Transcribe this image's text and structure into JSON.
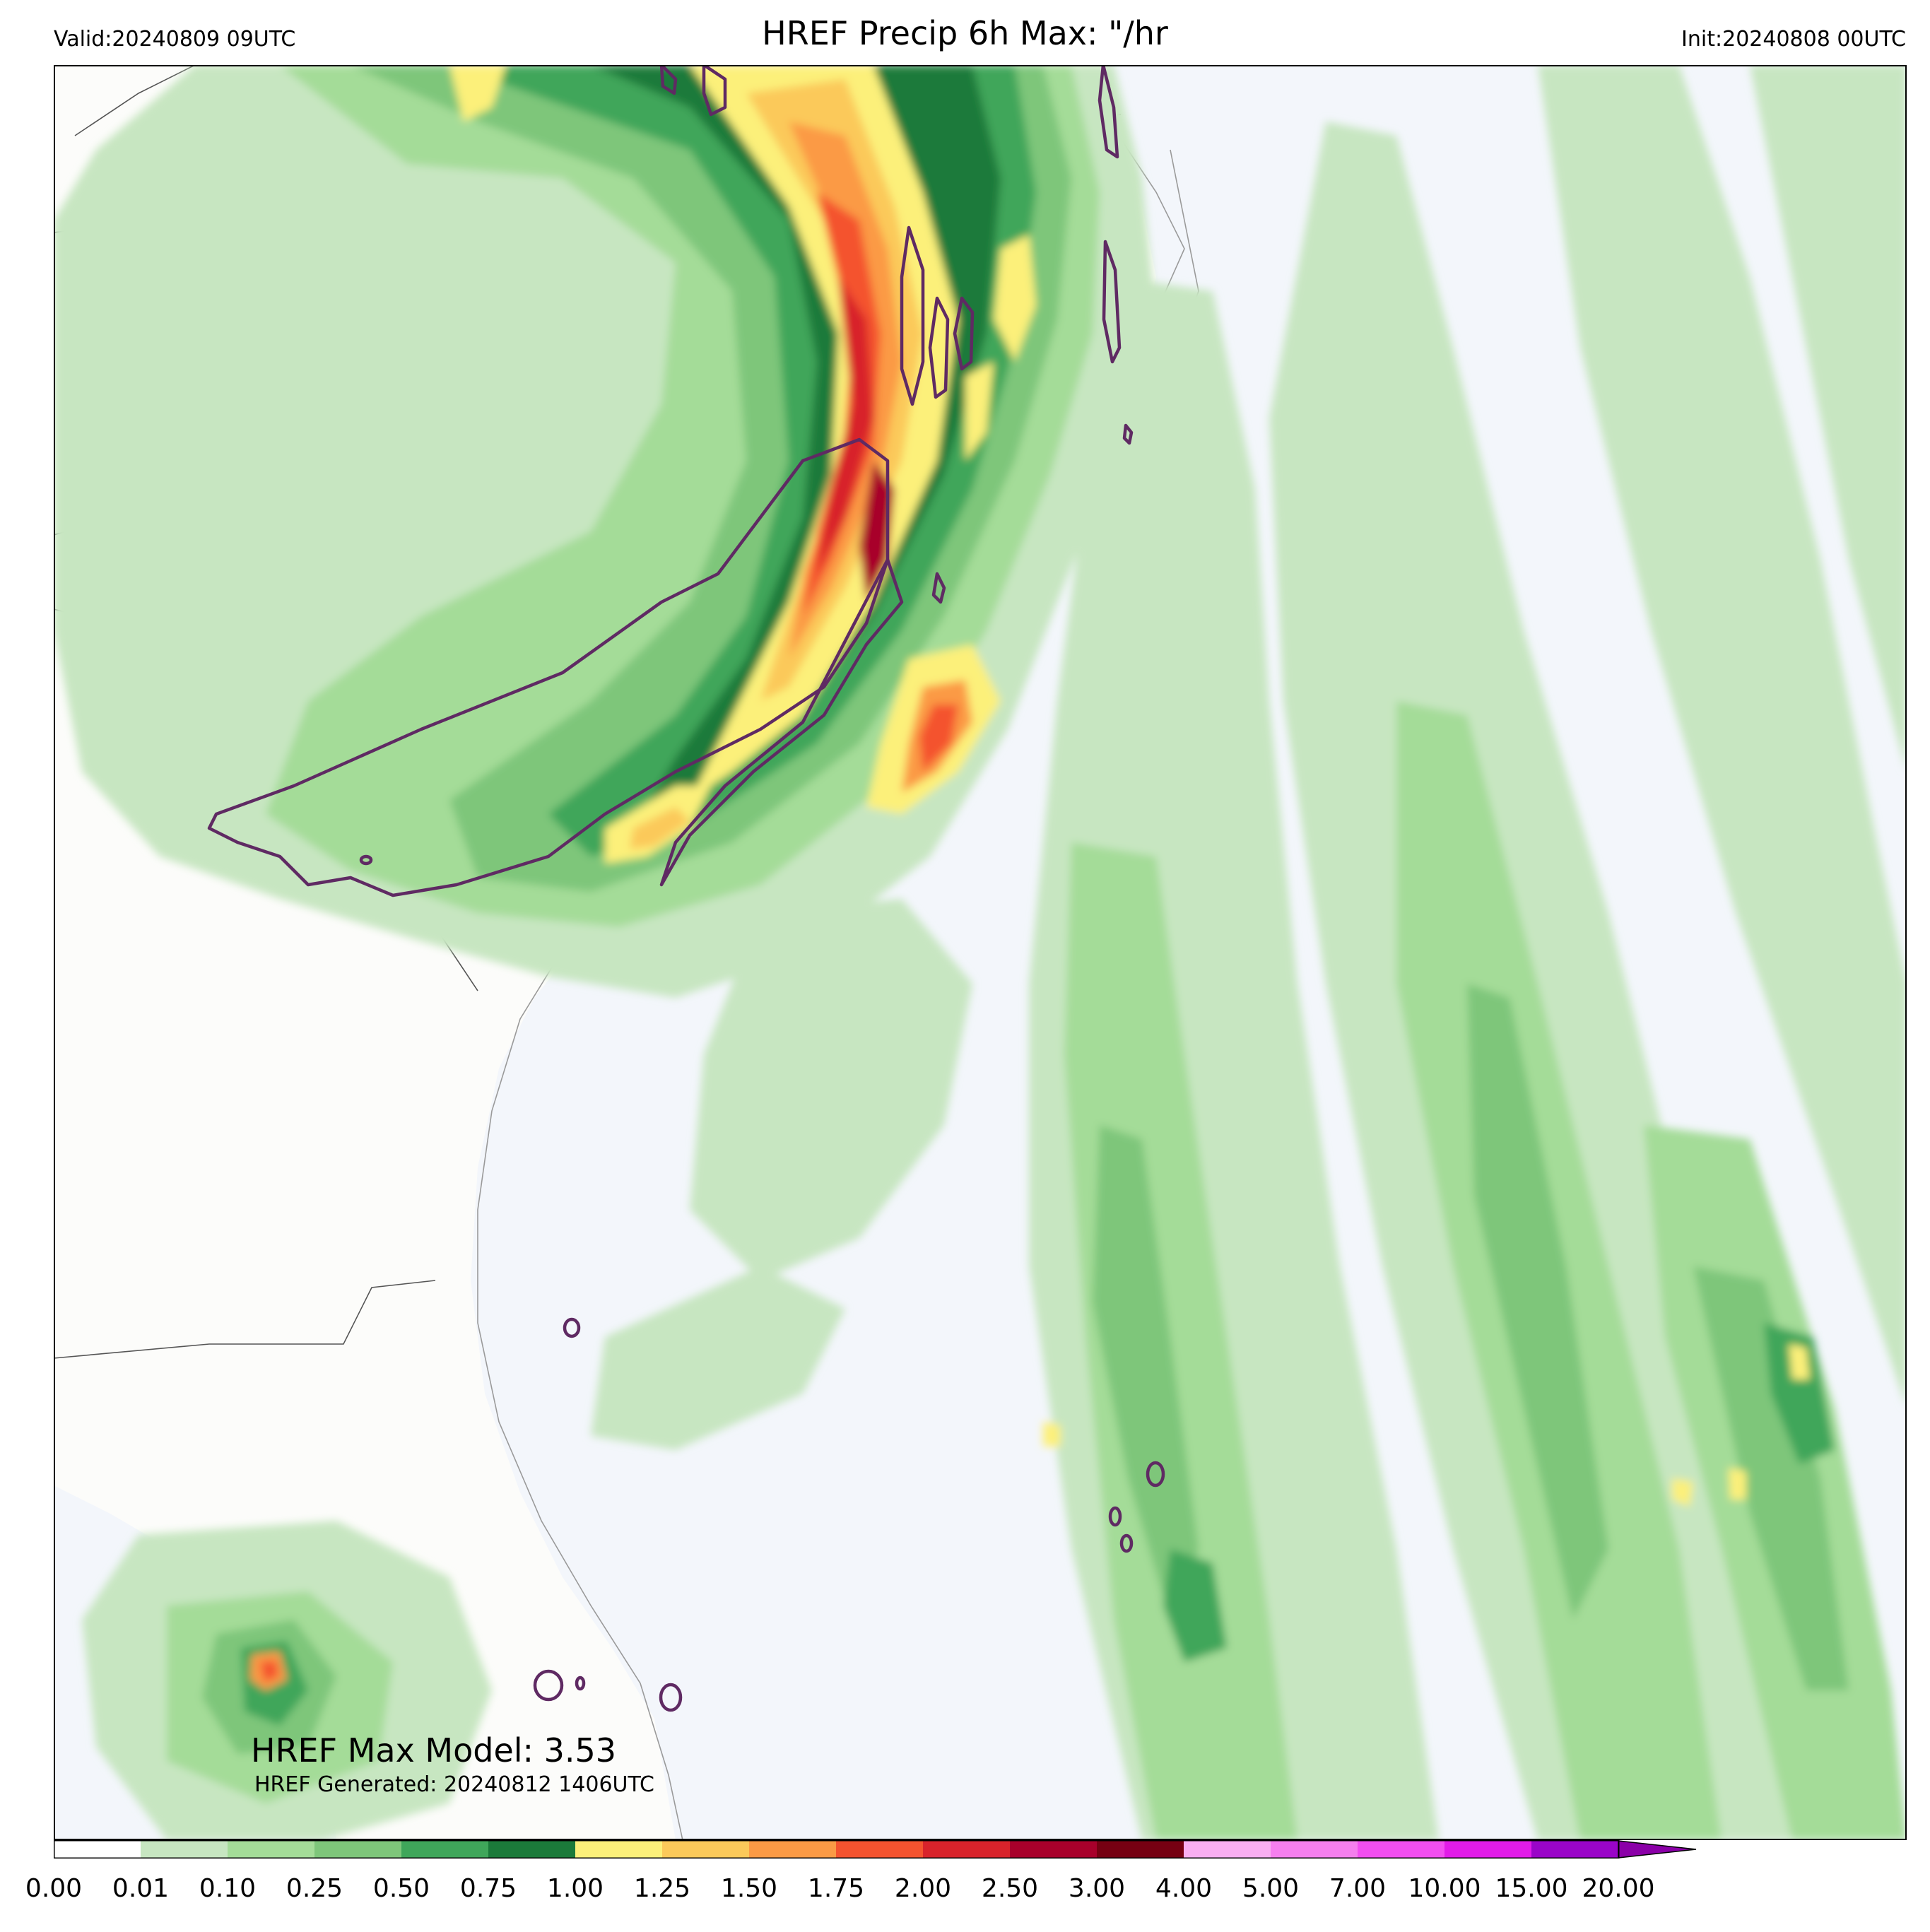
{
  "header": {
    "valid": "Valid:20240809 09UTC",
    "title": "HREF Precip 6h Max: \"/hr",
    "init": "Init:20240808 00UTC"
  },
  "annotations": {
    "max_model": "HREF Max Model: 3.53",
    "generated": "HREF Generated: 20240812 1406UTC"
  },
  "colorbar": {
    "levels": [
      "0.00",
      "0.01",
      "0.10",
      "0.25",
      "0.50",
      "0.75",
      "1.00",
      "1.25",
      "1.50",
      "1.75",
      "2.00",
      "2.50",
      "3.00",
      "4.00",
      "5.00",
      "7.00",
      "10.00",
      "15.00",
      "20.00"
    ],
    "colors": [
      "#ffffff",
      "#c7e6c1",
      "#a4dc98",
      "#7ec67a",
      "#3fa65a",
      "#1b7a3a",
      "#fcf07a",
      "#fbc95a",
      "#fb9a45",
      "#f4532f",
      "#d8232b",
      "#a8002b",
      "#760012",
      "#f9aef1",
      "#f57fee",
      "#f24ef0",
      "#e21ce8",
      "#9a05c8"
    ],
    "extend_color": "#8b00a8"
  },
  "colors": {
    "land": "#fcfcfa",
    "ocean": "#f3f6fb",
    "contour": "#5f2a63",
    "border": "#444444"
  }
}
